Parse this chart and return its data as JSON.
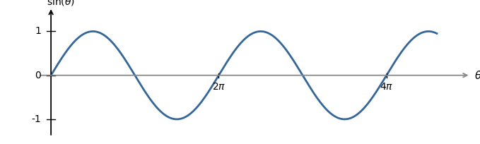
{
  "line_color": "#336699",
  "line_width": 2.0,
  "x_end_pi": 4.6,
  "ylim": [
    -1.4,
    1.55
  ],
  "xlim": [
    -0.15,
    5.0
  ],
  "x_ticks_pi": [
    2,
    4
  ],
  "y_ticks": [
    -1,
    0,
    1
  ],
  "axis_color": "#000000",
  "xaxis_color": "#888888",
  "background_color": "#ffffff",
  "figsize": [
    6.79,
    2.04
  ],
  "dpi": 100
}
